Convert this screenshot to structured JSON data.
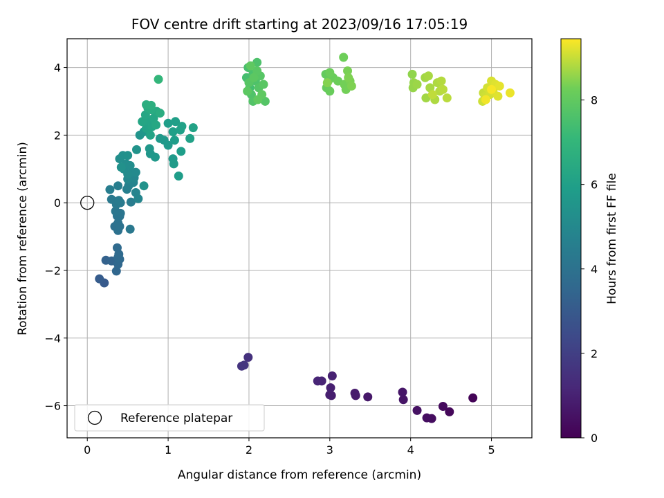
{
  "chart_data": {
    "type": "scatter",
    "title": "FOV centre drift starting at 2023/09/16 17:05:19",
    "xlabel": "Angular distance from reference (arcmin)",
    "ylabel": "Rotation from reference (arcmin)",
    "xlim": [
      -0.25,
      5.5
    ],
    "ylim": [
      -6.95,
      4.85
    ],
    "xticks": [
      0,
      1,
      2,
      3,
      4,
      5
    ],
    "yticks": [
      -6,
      -4,
      -2,
      0,
      2,
      4
    ],
    "grid": true,
    "colormap": "viridis",
    "colorbar": {
      "label": "Hours from first FF file",
      "range": [
        0,
        9.45
      ],
      "ticks": [
        0,
        2,
        4,
        6,
        8
      ]
    },
    "legend": {
      "position": "lower-left",
      "entries": [
        "Reference platepar"
      ]
    },
    "reference_point": {
      "x": 0,
      "y": 0
    },
    "points": [
      {
        "x": 4.77,
        "y": -5.77,
        "h": 0.1
      },
      {
        "x": 4.48,
        "y": -6.18,
        "h": 0.2
      },
      {
        "x": 4.4,
        "y": -6.02,
        "h": 0.3
      },
      {
        "x": 4.26,
        "y": -6.38,
        "h": 0.35
      },
      {
        "x": 4.2,
        "y": -6.36,
        "h": 0.4
      },
      {
        "x": 4.08,
        "y": -6.14,
        "h": 0.5
      },
      {
        "x": 3.91,
        "y": -5.82,
        "h": 0.6
      },
      {
        "x": 3.9,
        "y": -5.6,
        "h": 0.65
      },
      {
        "x": 3.47,
        "y": -5.74,
        "h": 0.7
      },
      {
        "x": 3.32,
        "y": -5.7,
        "h": 0.75
      },
      {
        "x": 3.31,
        "y": -5.63,
        "h": 0.8
      },
      {
        "x": 3.02,
        "y": -5.7,
        "h": 0.85
      },
      {
        "x": 3.0,
        "y": -5.68,
        "h": 0.9
      },
      {
        "x": 3.01,
        "y": -5.47,
        "h": 0.95
      },
      {
        "x": 3.03,
        "y": -5.12,
        "h": 1.0
      },
      {
        "x": 2.9,
        "y": -5.27,
        "h": 1.05
      },
      {
        "x": 2.85,
        "y": -5.27,
        "h": 1.1
      },
      {
        "x": 1.99,
        "y": -4.57,
        "h": 1.5
      },
      {
        "x": 1.91,
        "y": -4.83,
        "h": 1.6
      },
      {
        "x": 1.94,
        "y": -4.8,
        "h": 1.65
      },
      {
        "x": 0.21,
        "y": -2.37,
        "h": 3.0
      },
      {
        "x": 0.15,
        "y": -2.25,
        "h": 3.1
      },
      {
        "x": 0.23,
        "y": -1.7,
        "h": 3.3
      },
      {
        "x": 0.3,
        "y": -1.72,
        "h": 3.4
      },
      {
        "x": 0.36,
        "y": -2.02,
        "h": 3.5
      },
      {
        "x": 0.38,
        "y": -1.82,
        "h": 3.55
      },
      {
        "x": 0.4,
        "y": -1.67,
        "h": 3.6
      },
      {
        "x": 0.38,
        "y": -1.62,
        "h": 3.65
      },
      {
        "x": 0.37,
        "y": -1.33,
        "h": 3.7
      },
      {
        "x": 0.39,
        "y": -1.52,
        "h": 3.7
      },
      {
        "x": 0.34,
        "y": -0.7,
        "h": 3.9
      },
      {
        "x": 0.38,
        "y": -0.82,
        "h": 3.95
      },
      {
        "x": 0.38,
        "y": -0.6,
        "h": 4.0
      },
      {
        "x": 0.4,
        "y": -0.7,
        "h": 4.0
      },
      {
        "x": 0.37,
        "y": -0.39,
        "h": 4.1
      },
      {
        "x": 0.4,
        "y": -0.4,
        "h": 4.1
      },
      {
        "x": 0.41,
        "y": -0.31,
        "h": 4.15
      },
      {
        "x": 0.35,
        "y": -0.25,
        "h": 4.2
      },
      {
        "x": 0.53,
        "y": -0.78,
        "h": 4.25
      },
      {
        "x": 0.3,
        "y": 0.1,
        "h": 4.3
      },
      {
        "x": 0.36,
        "y": -0.05,
        "h": 4.3
      },
      {
        "x": 0.41,
        "y": 0.0,
        "h": 4.35
      },
      {
        "x": 0.39,
        "y": 0.07,
        "h": 4.4
      },
      {
        "x": 0.54,
        "y": 0.02,
        "h": 4.45
      },
      {
        "x": 0.28,
        "y": 0.39,
        "h": 4.5
      },
      {
        "x": 0.38,
        "y": 0.5,
        "h": 4.55
      },
      {
        "x": 0.49,
        "y": 0.4,
        "h": 4.6
      },
      {
        "x": 0.51,
        "y": 0.5,
        "h": 4.65
      },
      {
        "x": 0.53,
        "y": 0.6,
        "h": 4.7
      },
      {
        "x": 0.57,
        "y": 0.6,
        "h": 4.75
      },
      {
        "x": 0.6,
        "y": 0.3,
        "h": 4.8
      },
      {
        "x": 0.63,
        "y": 0.12,
        "h": 4.85
      },
      {
        "x": 0.58,
        "y": 0.74,
        "h": 4.9
      },
      {
        "x": 0.5,
        "y": 0.7,
        "h": 4.95
      },
      {
        "x": 0.55,
        "y": 0.9,
        "h": 5.0
      },
      {
        "x": 0.6,
        "y": 0.9,
        "h": 5.05
      },
      {
        "x": 0.5,
        "y": 0.85,
        "h": 5.1
      },
      {
        "x": 0.45,
        "y": 1.0,
        "h": 5.15
      },
      {
        "x": 0.48,
        "y": 1.15,
        "h": 5.2
      },
      {
        "x": 0.53,
        "y": 1.1,
        "h": 5.2
      },
      {
        "x": 0.4,
        "y": 1.3,
        "h": 5.25
      },
      {
        "x": 0.44,
        "y": 1.4,
        "h": 5.3
      },
      {
        "x": 0.5,
        "y": 1.4,
        "h": 5.35
      },
      {
        "x": 0.42,
        "y": 1.05,
        "h": 5.35
      },
      {
        "x": 0.7,
        "y": 0.5,
        "h": 5.4
      },
      {
        "x": 0.61,
        "y": 1.57,
        "h": 5.45
      },
      {
        "x": 0.65,
        "y": 2.0,
        "h": 5.5
      },
      {
        "x": 0.7,
        "y": 2.1,
        "h": 5.55
      },
      {
        "x": 0.77,
        "y": 1.6,
        "h": 5.6
      },
      {
        "x": 0.78,
        "y": 1.45,
        "h": 5.6
      },
      {
        "x": 0.84,
        "y": 1.35,
        "h": 5.65
      },
      {
        "x": 0.9,
        "y": 1.9,
        "h": 5.7
      },
      {
        "x": 0.95,
        "y": 1.85,
        "h": 5.7
      },
      {
        "x": 1.0,
        "y": 1.7,
        "h": 5.75
      },
      {
        "x": 1.06,
        "y": 1.3,
        "h": 5.75
      },
      {
        "x": 1.07,
        "y": 1.15,
        "h": 5.8
      },
      {
        "x": 1.08,
        "y": 1.85,
        "h": 5.85
      },
      {
        "x": 1.13,
        "y": 0.79,
        "h": 5.85
      },
      {
        "x": 1.16,
        "y": 1.52,
        "h": 5.9
      },
      {
        "x": 1.0,
        "y": 2.35,
        "h": 5.9
      },
      {
        "x": 1.06,
        "y": 2.1,
        "h": 5.95
      },
      {
        "x": 1.09,
        "y": 2.4,
        "h": 5.95
      },
      {
        "x": 1.15,
        "y": 2.15,
        "h": 6.0
      },
      {
        "x": 1.17,
        "y": 2.26,
        "h": 6.05
      },
      {
        "x": 1.27,
        "y": 1.9,
        "h": 6.05
      },
      {
        "x": 1.31,
        "y": 2.22,
        "h": 6.1
      },
      {
        "x": 0.73,
        "y": 2.2,
        "h": 6.1
      },
      {
        "x": 0.78,
        "y": 2.0,
        "h": 6.15
      },
      {
        "x": 0.8,
        "y": 2.25,
        "h": 6.2
      },
      {
        "x": 0.75,
        "y": 2.45,
        "h": 6.2
      },
      {
        "x": 0.68,
        "y": 2.4,
        "h": 6.25
      },
      {
        "x": 0.72,
        "y": 2.6,
        "h": 6.3
      },
      {
        "x": 0.82,
        "y": 2.5,
        "h": 6.3
      },
      {
        "x": 0.85,
        "y": 2.3,
        "h": 6.35
      },
      {
        "x": 0.86,
        "y": 2.7,
        "h": 6.4
      },
      {
        "x": 0.75,
        "y": 2.8,
        "h": 6.45
      },
      {
        "x": 0.79,
        "y": 2.75,
        "h": 6.5
      },
      {
        "x": 0.9,
        "y": 2.65,
        "h": 6.55
      },
      {
        "x": 0.73,
        "y": 2.9,
        "h": 6.6
      },
      {
        "x": 0.79,
        "y": 2.88,
        "h": 6.65
      },
      {
        "x": 0.88,
        "y": 3.65,
        "h": 7.0
      },
      {
        "x": 2.01,
        "y": 3.4,
        "h": 7.4
      },
      {
        "x": 1.97,
        "y": 3.7,
        "h": 7.45
      },
      {
        "x": 1.99,
        "y": 4.0,
        "h": 7.5
      },
      {
        "x": 2.05,
        "y": 3.8,
        "h": 7.55
      },
      {
        "x": 2.1,
        "y": 4.15,
        "h": 7.6
      },
      {
        "x": 2.08,
        "y": 3.6,
        "h": 7.6
      },
      {
        "x": 2.03,
        "y": 3.2,
        "h": 7.65
      },
      {
        "x": 2.05,
        "y": 3.0,
        "h": 7.7
      },
      {
        "x": 2.15,
        "y": 3.1,
        "h": 7.7
      },
      {
        "x": 2.2,
        "y": 3.0,
        "h": 7.75
      },
      {
        "x": 2.12,
        "y": 3.4,
        "h": 7.75
      },
      {
        "x": 2.0,
        "y": 3.55,
        "h": 7.8
      },
      {
        "x": 2.14,
        "y": 3.75,
        "h": 7.8
      },
      {
        "x": 2.18,
        "y": 3.5,
        "h": 7.85
      },
      {
        "x": 2.1,
        "y": 3.9,
        "h": 7.85
      },
      {
        "x": 1.98,
        "y": 3.3,
        "h": 7.9
      },
      {
        "x": 2.06,
        "y": 3.7,
        "h": 7.9
      },
      {
        "x": 2.02,
        "y": 4.05,
        "h": 7.95
      },
      {
        "x": 2.16,
        "y": 3.2,
        "h": 7.95
      },
      {
        "x": 2.11,
        "y": 3.05,
        "h": 8.0
      },
      {
        "x": 2.95,
        "y": 3.8,
        "h": 8.05
      },
      {
        "x": 2.98,
        "y": 3.6,
        "h": 8.1
      },
      {
        "x": 2.96,
        "y": 3.4,
        "h": 8.1
      },
      {
        "x": 3.0,
        "y": 3.3,
        "h": 8.15
      },
      {
        "x": 3.04,
        "y": 3.7,
        "h": 8.15
      },
      {
        "x": 3.0,
        "y": 3.85,
        "h": 8.2
      },
      {
        "x": 3.1,
        "y": 3.6,
        "h": 8.2
      },
      {
        "x": 3.17,
        "y": 4.3,
        "h": 8.25
      },
      {
        "x": 3.18,
        "y": 3.5,
        "h": 8.3
      },
      {
        "x": 3.2,
        "y": 3.35,
        "h": 8.3
      },
      {
        "x": 3.22,
        "y": 3.9,
        "h": 8.35
      },
      {
        "x": 3.25,
        "y": 3.6,
        "h": 8.35
      },
      {
        "x": 3.27,
        "y": 3.45,
        "h": 8.4
      },
      {
        "x": 3.23,
        "y": 3.7,
        "h": 8.4
      },
      {
        "x": 2.97,
        "y": 3.55,
        "h": 8.45
      },
      {
        "x": 4.02,
        "y": 3.8,
        "h": 8.55
      },
      {
        "x": 4.04,
        "y": 3.55,
        "h": 8.6
      },
      {
        "x": 4.03,
        "y": 3.4,
        "h": 8.6
      },
      {
        "x": 4.08,
        "y": 3.5,
        "h": 8.65
      },
      {
        "x": 4.18,
        "y": 3.7,
        "h": 8.7
      },
      {
        "x": 4.19,
        "y": 3.1,
        "h": 8.7
      },
      {
        "x": 4.22,
        "y": 3.75,
        "h": 8.75
      },
      {
        "x": 4.24,
        "y": 3.4,
        "h": 8.75
      },
      {
        "x": 4.3,
        "y": 3.05,
        "h": 8.8
      },
      {
        "x": 4.33,
        "y": 3.55,
        "h": 8.8
      },
      {
        "x": 4.36,
        "y": 3.3,
        "h": 8.85
      },
      {
        "x": 4.38,
        "y": 3.6,
        "h": 8.85
      },
      {
        "x": 4.4,
        "y": 3.35,
        "h": 8.9
      },
      {
        "x": 4.45,
        "y": 3.1,
        "h": 8.9
      },
      {
        "x": 4.27,
        "y": 3.2,
        "h": 8.95
      },
      {
        "x": 4.9,
        "y": 3.25,
        "h": 9.0
      },
      {
        "x": 4.89,
        "y": 3.0,
        "h": 9.05
      },
      {
        "x": 4.92,
        "y": 3.15,
        "h": 9.05
      },
      {
        "x": 4.95,
        "y": 3.4,
        "h": 9.1
      },
      {
        "x": 4.98,
        "y": 3.2,
        "h": 9.1
      },
      {
        "x": 5.0,
        "y": 3.6,
        "h": 9.15
      },
      {
        "x": 5.02,
        "y": 3.3,
        "h": 9.15
      },
      {
        "x": 5.05,
        "y": 3.5,
        "h": 9.2
      },
      {
        "x": 5.08,
        "y": 3.15,
        "h": 9.2
      },
      {
        "x": 5.1,
        "y": 3.45,
        "h": 9.25
      },
      {
        "x": 5.23,
        "y": 3.25,
        "h": 9.3
      },
      {
        "x": 4.93,
        "y": 3.05,
        "h": 9.35
      },
      {
        "x": 5.0,
        "y": 3.35,
        "h": 9.4
      }
    ]
  }
}
